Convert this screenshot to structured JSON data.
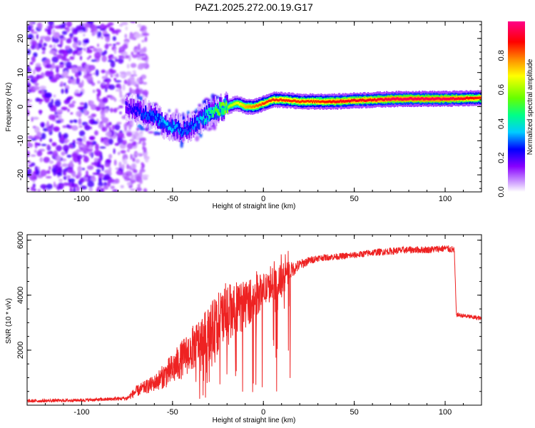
{
  "chart_data": [
    {
      "type": "heatmap",
      "title": "PAZ1.2025.272.00.19.G17",
      "xlabel": "Height of straight line (km)",
      "ylabel": "Frequency (Hz)",
      "xlim": [
        -130,
        120
      ],
      "ylim": [
        -25,
        25
      ],
      "xticks": [
        -100,
        -50,
        0,
        50,
        100
      ],
      "yticks": [
        -20,
        -10,
        0,
        10,
        20
      ],
      "colorbar": {
        "label": "Normalized spectral amplitude",
        "range": [
          0,
          1
        ],
        "ticks": [
          "0.0",
          "0.2",
          "0.4",
          "0.6",
          "0.8"
        ],
        "colors": [
          "#ffffff",
          "#cc99ff",
          "#8800ff",
          "#0000ff",
          "#00ccff",
          "#00ff88",
          "#66ff00",
          "#ffff00",
          "#ff8800",
          "#ff0000",
          "#ff0088"
        ]
      },
      "signal_track": {
        "x": [
          -75,
          -70,
          -65,
          -60,
          -55,
          -50,
          -45,
          -40,
          -35,
          -30,
          -25,
          -20,
          -15,
          -10,
          -5,
          0,
          5,
          10,
          20,
          30,
          40,
          50,
          60,
          70,
          80,
          90,
          100,
          110,
          120
        ],
        "freq_hz": [
          0,
          -1,
          -2,
          -3,
          -5,
          -6,
          -7,
          -6,
          -4,
          -2,
          -1,
          0,
          1,
          0,
          0,
          1,
          2,
          2,
          1.5,
          1.5,
          1.5,
          1.8,
          2,
          2.2,
          2.3,
          2.3,
          2.3,
          2.4,
          2.5
        ],
        "amplitude": [
          0.2,
          0.25,
          0.3,
          0.3,
          0.35,
          0.35,
          0.3,
          0.3,
          0.35,
          0.45,
          0.55,
          0.6,
          0.65,
          0.75,
          0.8,
          0.85,
          0.85,
          0.85,
          0.85,
          0.85,
          0.9,
          0.9,
          0.9,
          0.95,
          0.95,
          0.95,
          0.95,
          0.9,
          0.85
        ]
      },
      "noise_region_x": [
        -130,
        -70
      ]
    },
    {
      "type": "line",
      "xlabel": "Height of straight line (km)",
      "ylabel": "SNR (10 * v/v)",
      "xlim": [
        -130,
        120
      ],
      "ylim": [
        0,
        6200
      ],
      "xticks": [
        -100,
        -50,
        0,
        50,
        100
      ],
      "yticks": [
        2000,
        4000,
        6000
      ],
      "series": [
        {
          "name": "SNR",
          "color": "#ee2222",
          "x": [
            -130,
            -110,
            -90,
            -75,
            -70,
            -60,
            -50,
            -40,
            -30,
            -25,
            -20,
            -15,
            -10,
            -5,
            0,
            5,
            10,
            15,
            20,
            25,
            30,
            40,
            50,
            60,
            70,
            80,
            90,
            100,
            105,
            106,
            110,
            120
          ],
          "y": [
            150,
            170,
            200,
            250,
            500,
            800,
            1300,
            2000,
            2600,
            3000,
            3300,
            3400,
            3700,
            3900,
            4200,
            4300,
            4500,
            4900,
            5100,
            5250,
            5350,
            5400,
            5450,
            5550,
            5600,
            5650,
            5650,
            5700,
            5650,
            3300,
            3250,
            3150
          ],
          "noise_amplitude": [
            60,
            60,
            60,
            80,
            200,
            300,
            600,
            800,
            1000,
            1100,
            1200,
            900,
            900,
            800,
            600,
            500,
            700,
            300,
            200,
            150,
            120,
            120,
            120,
            130,
            130,
            130,
            130,
            130,
            130,
            80,
            80,
            80
          ]
        }
      ]
    }
  ]
}
